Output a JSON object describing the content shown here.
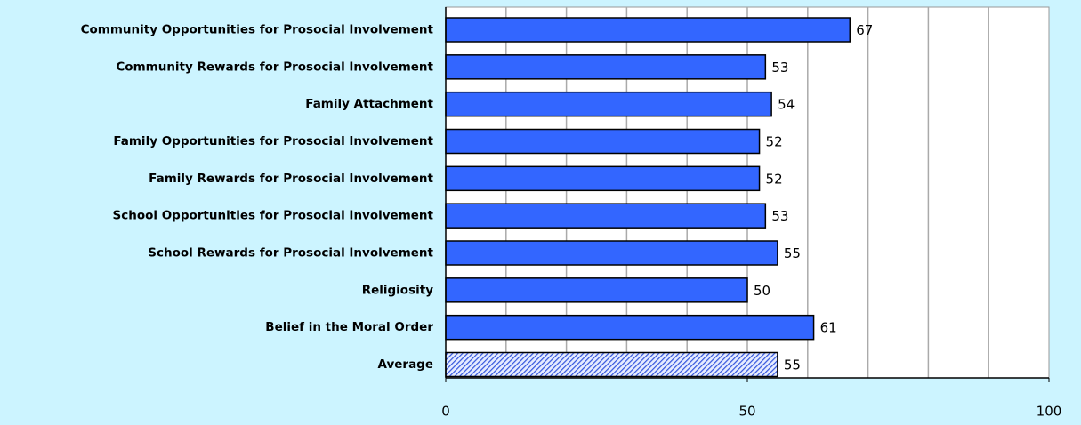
{
  "chart_data": {
    "type": "bar",
    "orientation": "horizontal",
    "categories": [
      "Community Opportunities for Prosocial Involvement",
      "Community Rewards for Prosocial Involvement",
      "Family Attachment",
      "Family Opportunities for Prosocial Involvement",
      "Family Rewards for Prosocial Involvement",
      "School Opportunities for Prosocial Involvement",
      "School Rewards for Prosocial Involvement",
      "Religiosity",
      "Belief in the Moral Order",
      "Average"
    ],
    "values": [
      67,
      53,
      54,
      52,
      52,
      53,
      55,
      50,
      61,
      55
    ],
    "color": "#3366ff",
    "fill_styles": [
      "solid",
      "solid",
      "solid",
      "solid",
      "solid",
      "solid",
      "solid",
      "solid",
      "solid",
      "hatched"
    ],
    "xlim": [
      0,
      100
    ],
    "xticks": [
      0,
      50,
      100
    ],
    "xgrid": [
      10,
      20,
      30,
      40,
      50,
      60,
      70,
      80,
      90
    ],
    "grid": true
  }
}
